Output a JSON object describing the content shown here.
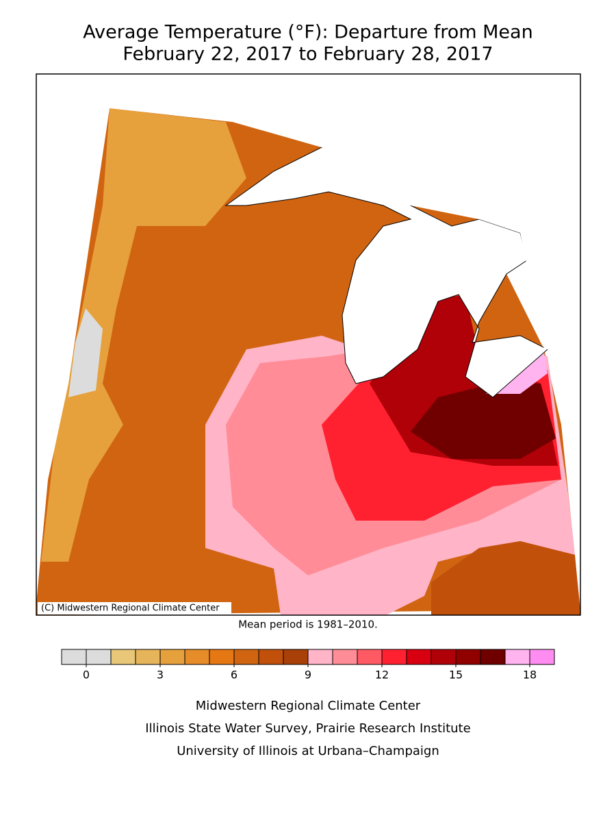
{
  "title": [
    "Average Temperature (°F): Departure from Mean",
    "February 22, 2017 to February 28, 2017"
  ],
  "map": {
    "credit": "(C) Midwestern Regional Climate Center"
  },
  "note": "Mean period is 1981–2010.",
  "colorbar": {
    "range": [
      -1,
      19
    ],
    "ticks": [
      0,
      3,
      6,
      9,
      12,
      15,
      18
    ],
    "colors": [
      "#dcdcdc",
      "#dcdcdc",
      "#e8c878",
      "#e6b45a",
      "#e6a03c",
      "#e68c28",
      "#e67814",
      "#d06410",
      "#c0500a",
      "#a84008",
      "#ffb4c8",
      "#ff8c96",
      "#ff5a64",
      "#ff2030",
      "#d80010",
      "#b00008",
      "#900000",
      "#700000",
      "#ffb4f0",
      "#ff8cf0"
    ]
  },
  "footer": [
    "Midwestern Regional Climate Center",
    "Illinois State Water Survey, Prairie Research Institute",
    "University of Illinois at Urbana–Champaign"
  ]
}
